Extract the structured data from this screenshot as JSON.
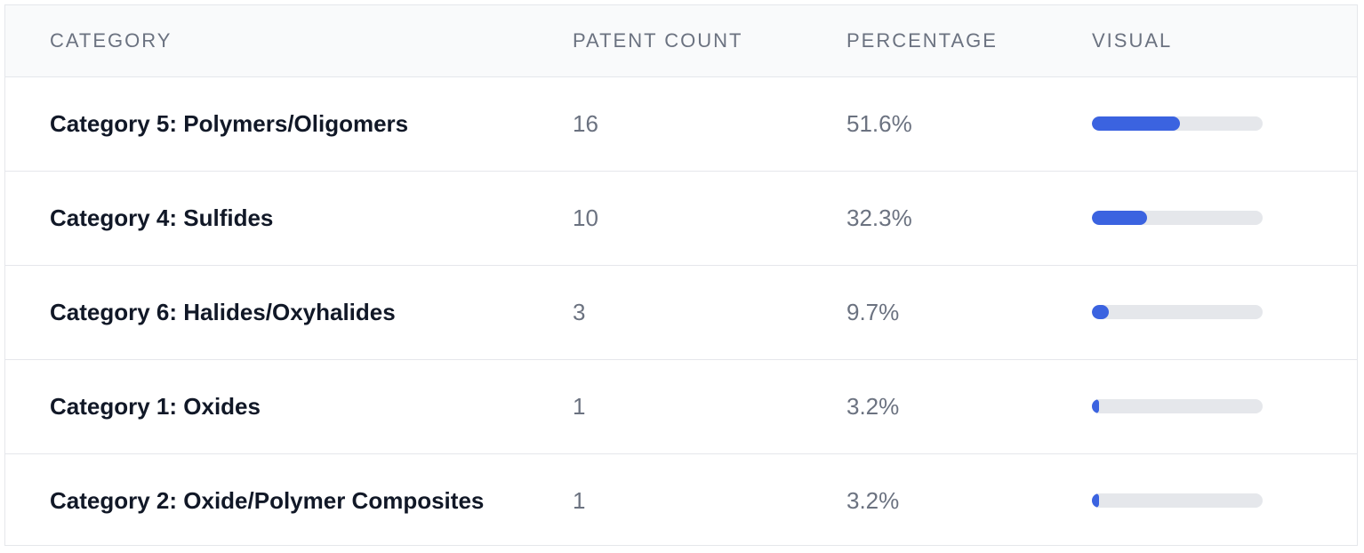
{
  "table": {
    "headers": {
      "category": "CATEGORY",
      "patent_count": "PATENT COUNT",
      "percentage": "PERCENTAGE",
      "visual": "VISUAL"
    },
    "rows": [
      {
        "category": "Category 5: Polymers/Oligomers",
        "count": "16",
        "percentage": "51.6%",
        "fraction": 0.516
      },
      {
        "category": "Category 4: Sulfides",
        "count": "10",
        "percentage": "32.3%",
        "fraction": 0.323
      },
      {
        "category": "Category 6: Halides/Oxyhalides",
        "count": "3",
        "percentage": "9.7%",
        "fraction": 0.097
      },
      {
        "category": "Category 1: Oxides",
        "count": "1",
        "percentage": "3.2%",
        "fraction": 0.032
      },
      {
        "category": "Category 2: Oxide/Polymer Composites",
        "count": "1",
        "percentage": "3.2%",
        "fraction": 0.032
      }
    ]
  },
  "colors": {
    "bar_fill": "#3b63e0",
    "bar_track": "#e5e7eb"
  }
}
